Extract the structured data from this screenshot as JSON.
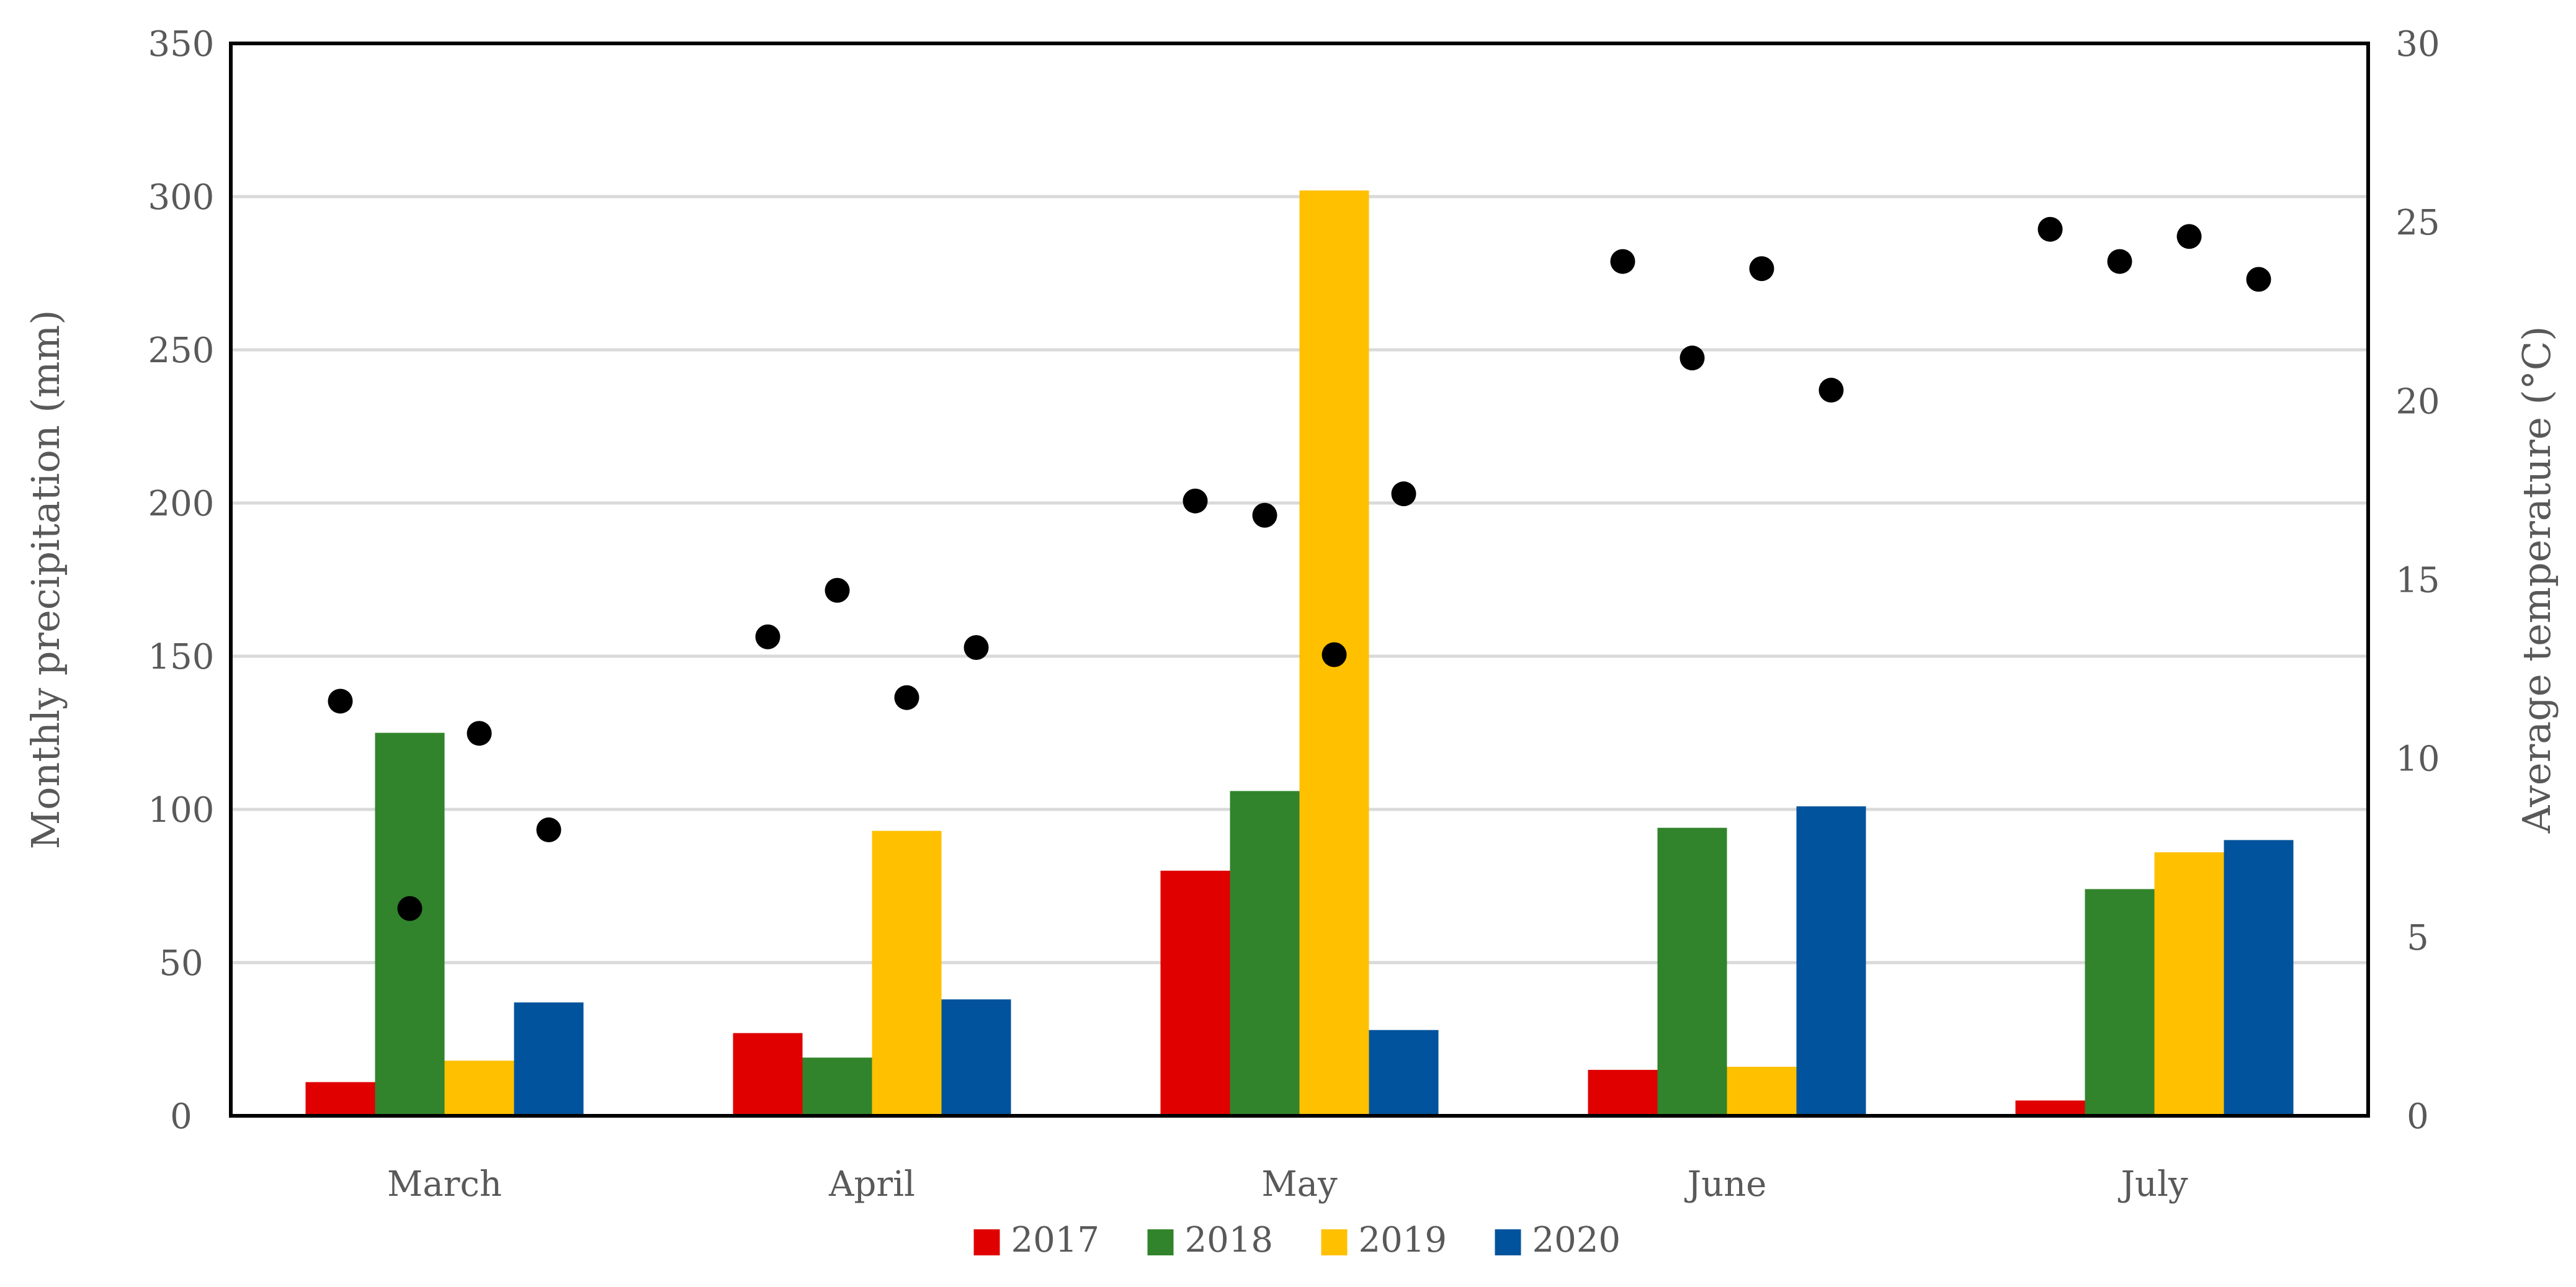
{
  "chart_data": {
    "type": "bar",
    "categories": [
      "March",
      "April",
      "May",
      "June",
      "July"
    ],
    "series": [
      {
        "name": "2017",
        "color": "#e00000",
        "values": [
          11,
          27,
          80,
          15,
          5
        ]
      },
      {
        "name": "2018",
        "color": "#31842b",
        "values": [
          125,
          19,
          106,
          94,
          74
        ]
      },
      {
        "name": "2019",
        "color": "#ffc000",
        "values": [
          18,
          93,
          302,
          16,
          86
        ]
      },
      {
        "name": "2020",
        "color": "#00539c",
        "values": [
          37,
          38,
          28,
          101,
          90
        ]
      }
    ],
    "temperature": {
      "type": "scatter",
      "axis": "right",
      "color": "#000000",
      "values": [
        [
          11.6,
          5.8,
          10.7,
          8.0
        ],
        [
          13.4,
          14.7,
          11.7,
          13.1
        ],
        [
          17.2,
          16.8,
          12.9,
          17.4
        ],
        [
          23.9,
          21.2,
          23.7,
          20.3
        ],
        [
          24.8,
          23.9,
          24.6,
          23.4
        ]
      ]
    },
    "ylabel": "Monthly precipitation (mm)",
    "ylim": [
      0,
      350
    ],
    "yticks": [
      "0",
      "50",
      "100",
      "150",
      "200",
      "250",
      "300",
      "350"
    ],
    "y2label": "Average temperature (°C)",
    "y2lim": [
      0,
      30
    ],
    "y2ticks": [
      "0",
      "5",
      "10",
      "15",
      "20",
      "25",
      "30"
    ],
    "grid": true,
    "legend_position": "bottom"
  }
}
